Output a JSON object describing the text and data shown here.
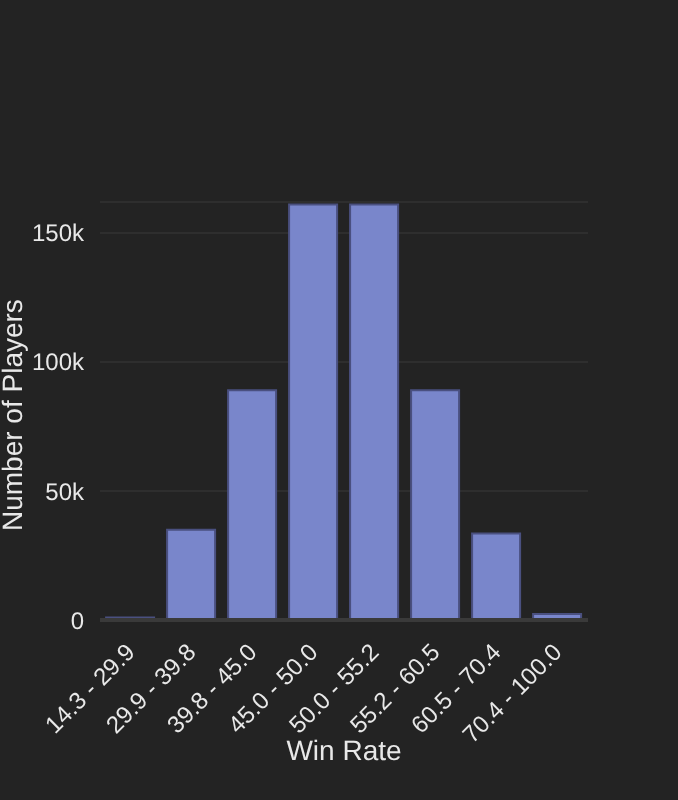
{
  "chart_data": {
    "type": "bar",
    "xlabel": "Win Rate",
    "ylabel": "Number of Players",
    "categories": [
      "14.3 - 29.9",
      "29.9 - 39.8",
      "39.8 - 45.0",
      "45.0 - 50.0",
      "50.0 - 55.2",
      "55.2 - 60.5",
      "60.5 - 70.4",
      "70.4 - 100.0"
    ],
    "values": [
      1000,
      35000,
      89000,
      161000,
      161000,
      89000,
      33500,
      2300
    ],
    "color": "#7986cb",
    "ylim": [
      0,
      162000
    ],
    "yticks": [
      {
        "value": 0,
        "label": "0"
      },
      {
        "value": 50000,
        "label": "50k"
      },
      {
        "value": 100000,
        "label": "100k"
      },
      {
        "value": 150000,
        "label": "150k"
      }
    ],
    "grid": "y"
  }
}
